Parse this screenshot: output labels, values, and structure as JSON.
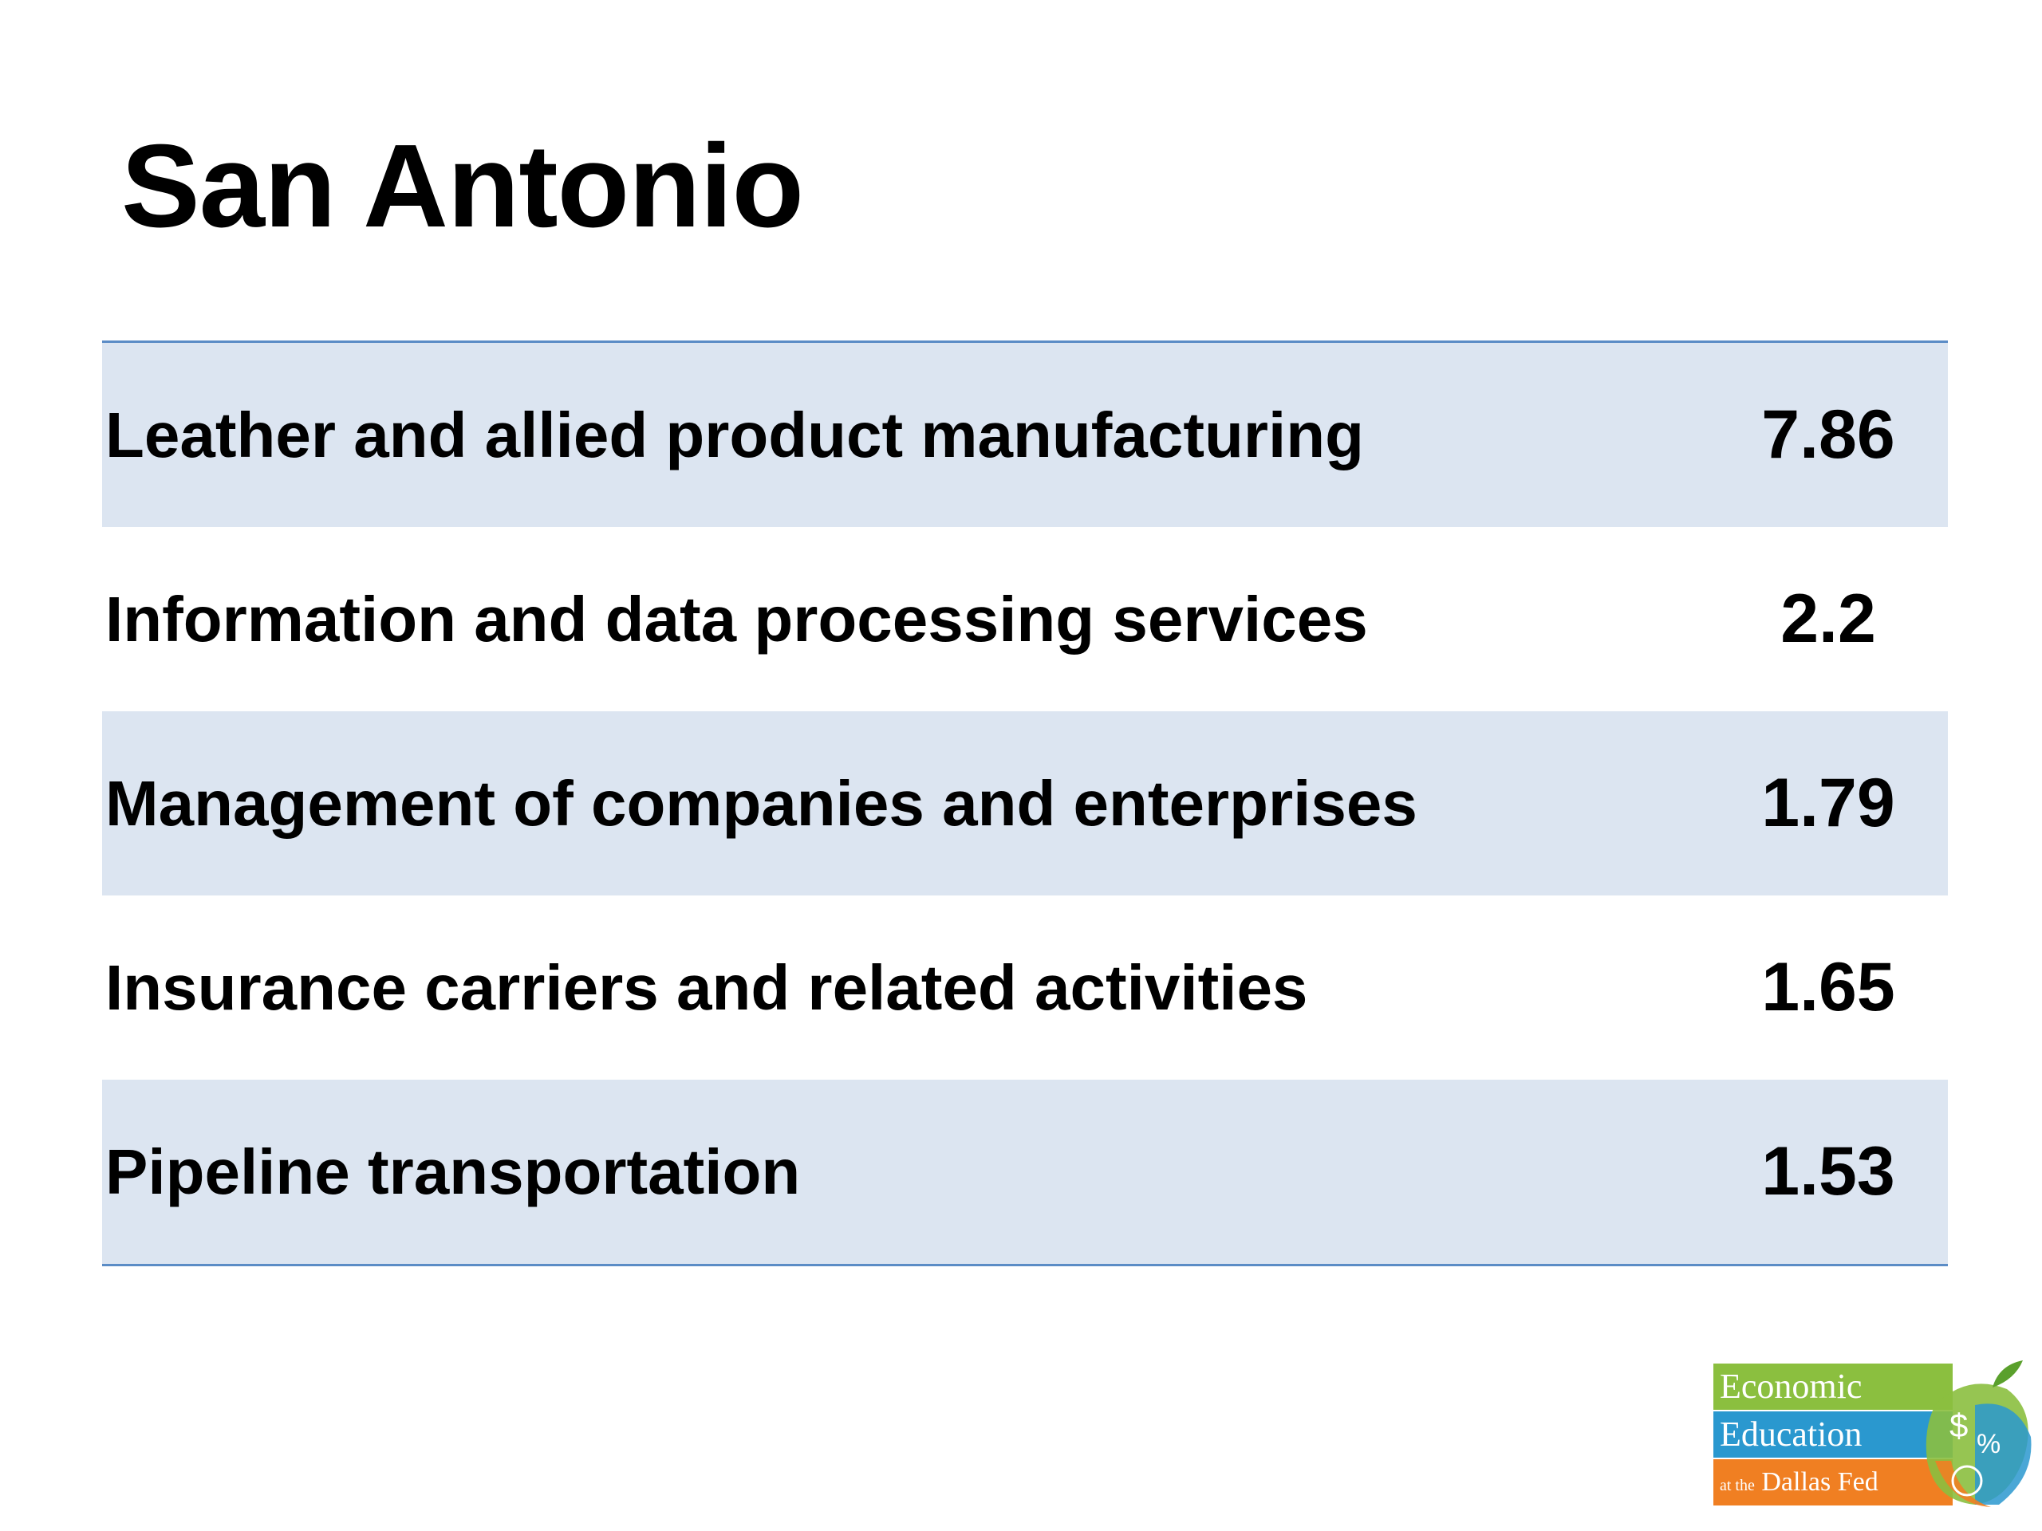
{
  "slide": {
    "title": "San Antonio"
  },
  "table": {
    "rows": [
      {
        "label": "Leather and allied product manufacturing",
        "value": "7.86"
      },
      {
        "label": "Information and data processing services",
        "value": "2.2"
      },
      {
        "label": "Management of companies and enterprises",
        "value": "1.79"
      },
      {
        "label": "Insurance carriers and related activities",
        "value": "1.65"
      },
      {
        "label": "Pipeline transportation",
        "value": "1.53"
      }
    ]
  },
  "logo": {
    "line1": "Economic",
    "line2": "Education",
    "line3_prefix": "at the",
    "line3": "Dallas Fed",
    "icon": "apple-dollar-percent-icon"
  },
  "colors": {
    "row_shade": "#dce5f1",
    "table_rule": "#5b8cc6",
    "logo_green": "#8bbf3f",
    "logo_blue": "#2a98cf",
    "logo_orange": "#f07f22"
  }
}
